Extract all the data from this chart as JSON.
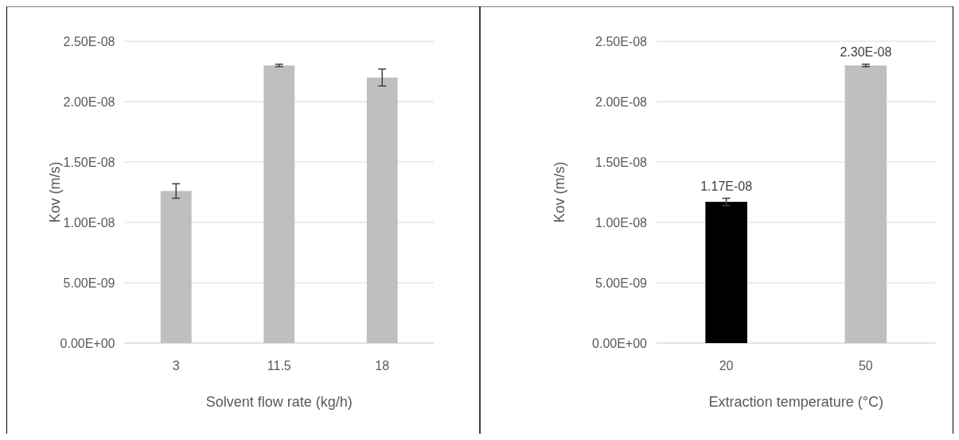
{
  "chart_data": [
    {
      "type": "bar",
      "xlabel": "Solvent flow rate (kg/h)",
      "ylabel": "Kov (m/s)",
      "categories": [
        "3",
        "11.5",
        "18"
      ],
      "values": [
        1.26e-08,
        2.3e-08,
        2.2e-08
      ],
      "errors": [
        6e-10,
        1e-10,
        7e-10
      ],
      "color": "#bfbfbf",
      "ylim": [
        0,
        2.5e-08
      ],
      "yticks": [
        {
          "value": 0,
          "label": "0.00E+00"
        },
        {
          "value": 5e-09,
          "label": "5.00E-09"
        },
        {
          "value": 1e-08,
          "label": "1.00E-08"
        },
        {
          "value": 1.5e-08,
          "label": "1.50E-08"
        },
        {
          "value": 2e-08,
          "label": "2.00E-08"
        },
        {
          "value": 2.5e-08,
          "label": "2.50E-08"
        }
      ],
      "grid": "y"
    },
    {
      "type": "bar",
      "xlabel": "Extraction temperature (°C)",
      "ylabel": "Kov (m/s)",
      "categories": [
        "20",
        "50"
      ],
      "values": [
        1.17e-08,
        2.3e-08
      ],
      "errors": [
        3e-10,
        1e-10
      ],
      "colors": [
        "#000000",
        "#bfbfbf"
      ],
      "value_labels": [
        "1.17E-08",
        "2.30E-08"
      ],
      "ylim": [
        0,
        2.5e-08
      ],
      "yticks": [
        {
          "value": 0,
          "label": "0.00E+00"
        },
        {
          "value": 5e-09,
          "label": "5.00E-09"
        },
        {
          "value": 1e-08,
          "label": "1.00E-08"
        },
        {
          "value": 1.5e-08,
          "label": "1.50E-08"
        },
        {
          "value": 2e-08,
          "label": "2.00E-08"
        },
        {
          "value": 2.5e-08,
          "label": "2.50E-08"
        }
      ],
      "grid": "y"
    }
  ]
}
